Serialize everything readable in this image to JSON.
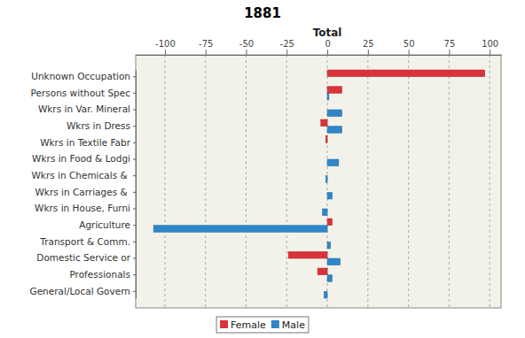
{
  "chart_data": {
    "type": "bar",
    "orientation": "horizontal",
    "title": "1881",
    "xlabel": "Total",
    "categories": [
      "Unknown Occupation",
      "Persons without Spec",
      "Wkrs in Var. Mineral",
      "Wkrs in Dress",
      "Wkrs in Textile Fabr",
      "Wkrs in Food & Lodgi",
      "Wkrs in Chemicals & ",
      "Wkrs in Carriages & ",
      "Wkrs in House, Furni",
      "Agriculture",
      "Transport & Comm.",
      "Domestic Service or",
      "Professionals",
      "General/Local Govern"
    ],
    "series": [
      {
        "name": "Female",
        "color": "#d9333a",
        "values": [
          97,
          9,
          0,
          -4,
          -1,
          0,
          0,
          0,
          0,
          3,
          0,
          -24,
          -6,
          0
        ]
      },
      {
        "name": "Male",
        "color": "#2f86c9",
        "values": [
          0,
          1,
          9,
          9,
          0,
          7,
          -1,
          3,
          -3,
          -107,
          2,
          8,
          3,
          -2
        ]
      }
    ],
    "xlim": [
      -118,
      107
    ],
    "xticks": [
      -100,
      -75,
      -50,
      -25,
      0,
      25,
      50,
      75,
      100
    ],
    "grid": true,
    "legend": "bottom"
  }
}
